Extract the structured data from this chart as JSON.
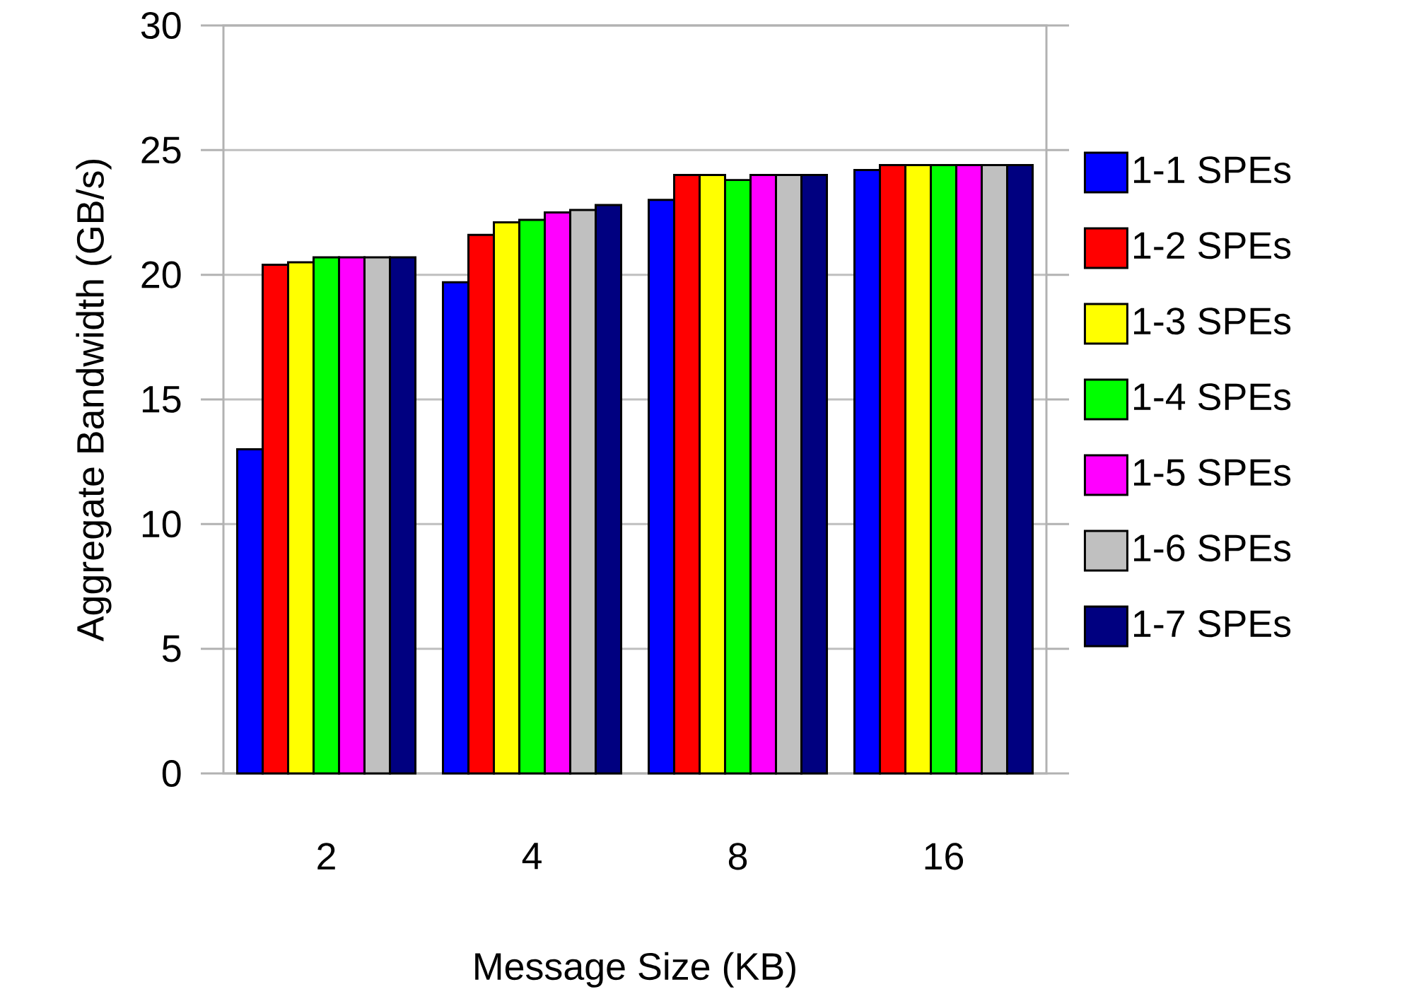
{
  "chart_data": {
    "type": "bar",
    "xlabel": "Message Size (KB)",
    "ylabel": "Aggregate Bandwidth (GB/s)",
    "categories": [
      "2",
      "4",
      "8",
      "16"
    ],
    "series": [
      {
        "name": "1-1 SPEs",
        "color": "#0000ff",
        "values": [
          13.0,
          19.7,
          23.0,
          24.2
        ]
      },
      {
        "name": "1-2 SPEs",
        "color": "#ff0000",
        "values": [
          20.4,
          21.6,
          24.0,
          24.4
        ]
      },
      {
        "name": "1-3 SPEs",
        "color": "#ffff00",
        "values": [
          20.5,
          22.1,
          24.0,
          24.4
        ]
      },
      {
        "name": "1-4 SPEs",
        "color": "#00ff00",
        "values": [
          20.7,
          22.2,
          23.8,
          24.4
        ]
      },
      {
        "name": "1-5 SPEs",
        "color": "#ff00ff",
        "values": [
          20.7,
          22.5,
          24.0,
          24.4
        ]
      },
      {
        "name": "1-6 SPEs",
        "color": "#c0c0c0",
        "values": [
          20.7,
          22.6,
          24.0,
          24.4
        ]
      },
      {
        "name": "1-7 SPEs",
        "color": "#000080",
        "values": [
          20.7,
          22.8,
          24.0,
          24.4
        ]
      }
    ],
    "ylim": [
      0,
      30
    ],
    "yticks": [
      0,
      5,
      10,
      15,
      20,
      25,
      30
    ],
    "grid": "y",
    "legend": "right"
  }
}
